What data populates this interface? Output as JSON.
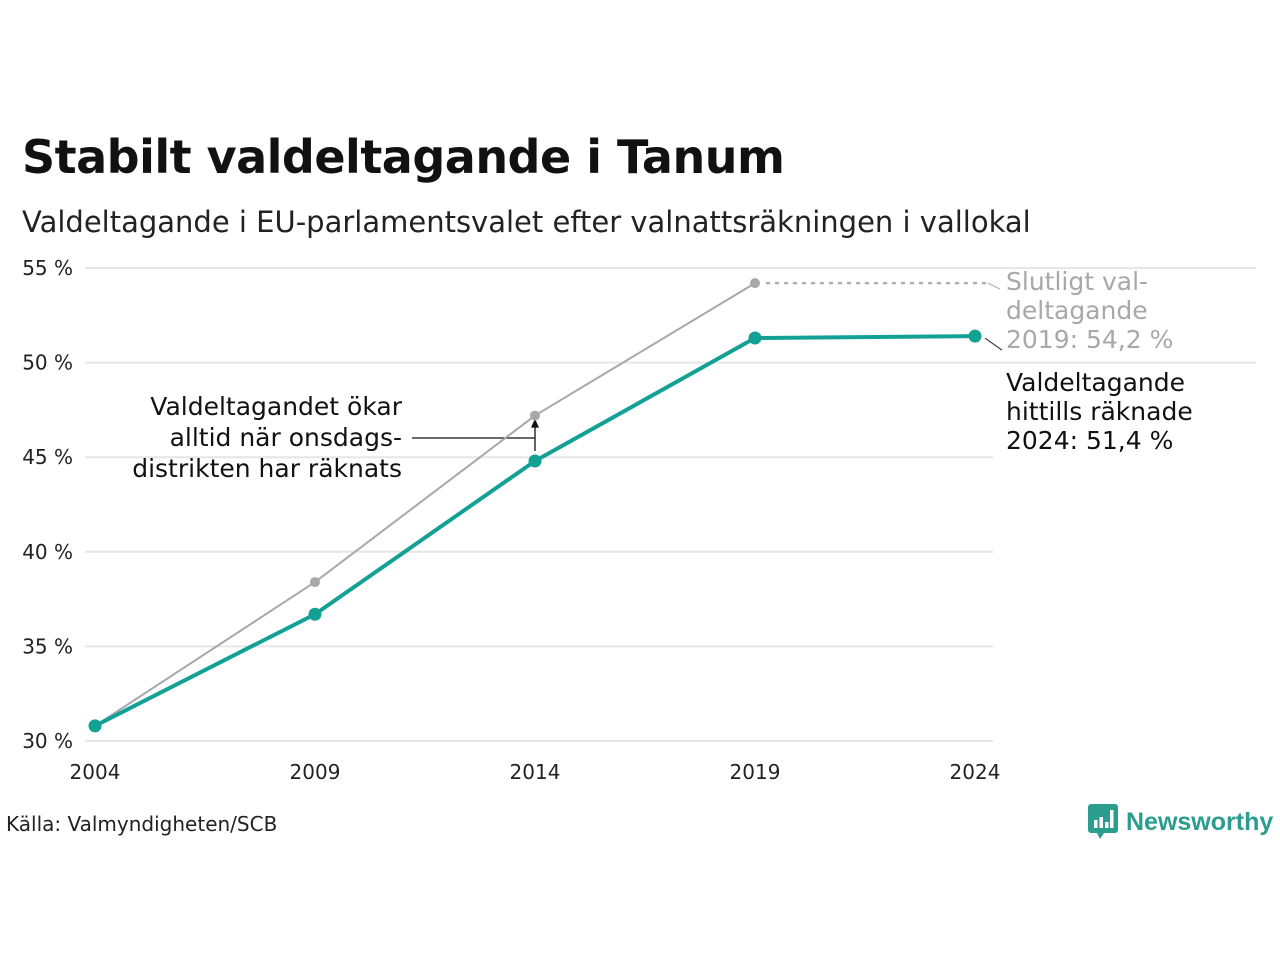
{
  "header": {
    "title": "Stabilt valdeltagande i Tanum",
    "subtitle": "Valdeltagande i EU-parlamentsvalet efter valnattsräkningen i vallokal"
  },
  "footer": {
    "source": "Källa: Valmyndigheten/SCB",
    "brand": "Newsworthy"
  },
  "colors": {
    "teal": "#13a196",
    "gray": "#a8a8a8",
    "grid": "#e6e6e6",
    "text": "#111111",
    "brand": "#2a9d8f"
  },
  "chart_data": {
    "type": "line",
    "x": [
      2004,
      2009,
      2014,
      2019,
      2024
    ],
    "x_tick_labels": [
      "2004",
      "2009",
      "2014",
      "2019",
      "2024"
    ],
    "ylim": [
      30,
      55
    ],
    "y_ticks": [
      30,
      35,
      40,
      45,
      50,
      55
    ],
    "y_tick_labels": [
      "30 %",
      "35 %",
      "40 %",
      "45 %",
      "50 %",
      "55 %"
    ],
    "grid": true,
    "series": [
      {
        "key": "final",
        "color": "#a8a8a8",
        "x": [
          2004,
          2009,
          2014,
          2019
        ],
        "values": [
          30.8,
          38.4,
          47.2,
          54.2
        ]
      },
      {
        "key": "preliminary",
        "color": "#13a196",
        "x": [
          2004,
          2009,
          2014,
          2019,
          2024
        ],
        "values": [
          30.8,
          36.7,
          44.8,
          51.3,
          51.4
        ]
      }
    ],
    "annotations": {
      "final_label": [
        "Slutligt val-",
        "deltagande",
        "2019: 54,2 %"
      ],
      "current_label": [
        "Valdeltagande",
        "hittills räknade",
        "2024: 51,4 %"
      ],
      "increase_note": [
        "Valdeltagandet ökar",
        "alltid när onsdags-",
        "distrikten har räknats"
      ]
    }
  }
}
